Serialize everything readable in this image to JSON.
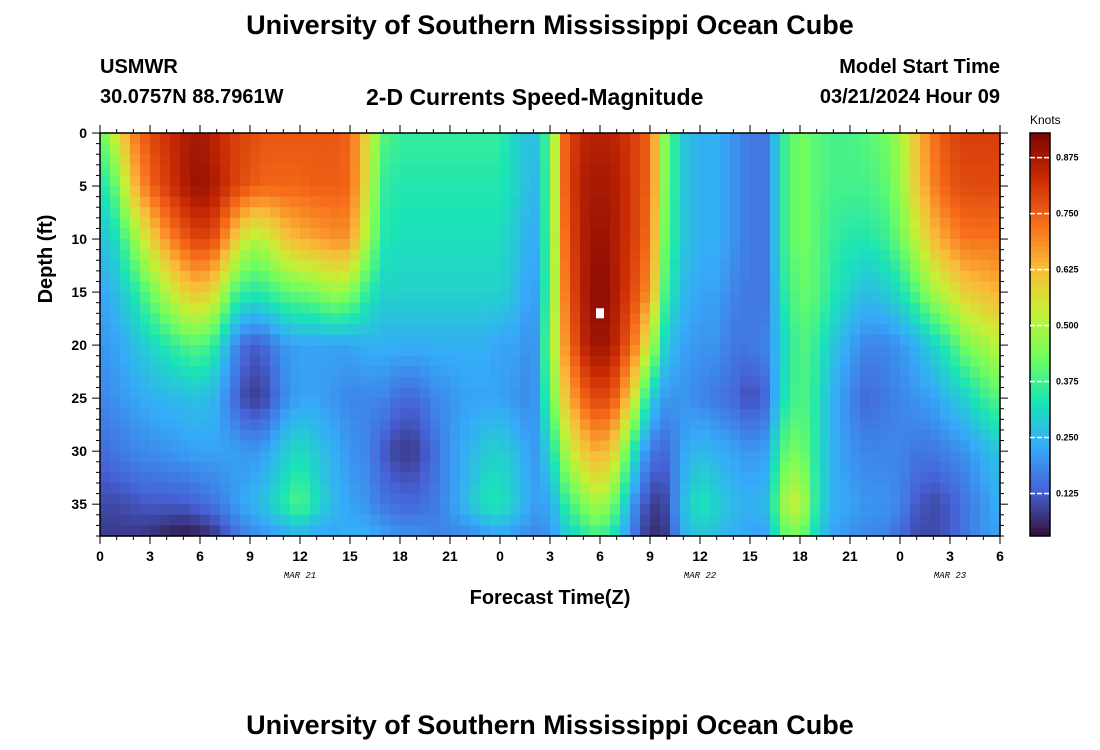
{
  "header": {
    "title": "University of Southern Mississippi Ocean Cube",
    "station": "USMWR",
    "coordinates": "30.0757N  88.7961W",
    "plot_title": "2-D Currents Speed-Magnitude",
    "start_label": "Model Start Time",
    "start_value": "03/21/2024 Hour 09"
  },
  "footer": {
    "title": "University of Southern Mississippi Ocean Cube"
  },
  "chart_data": {
    "type": "heatmap",
    "title": "2-D Currents Speed-Magnitude",
    "xlabel": "Forecast Time(Z)",
    "ylabel": "Depth (ft)",
    "x_ticks": [
      "0",
      "3",
      "6",
      "9",
      "12",
      "15",
      "18",
      "21",
      "0",
      "3",
      "6",
      "9",
      "12",
      "15",
      "18",
      "21",
      "0",
      "3",
      "6"
    ],
    "x_date_labels": [
      {
        "label": "MAR 21",
        "at_hour": 12
      },
      {
        "label": "MAR 22",
        "at_hour": 36
      },
      {
        "label": "MAR 23",
        "at_hour": 51
      }
    ],
    "xlim_hours": [
      0,
      54
    ],
    "y_ticks": [
      0,
      5,
      10,
      15,
      20,
      25,
      30,
      35
    ],
    "ylim": [
      0,
      38
    ],
    "colorbar": {
      "unit": "Knots",
      "ticks": [
        "0.125",
        "0.250",
        "0.375",
        "0.500",
        "0.625",
        "0.750",
        "0.875"
      ],
      "range": [
        0.03,
        0.93
      ],
      "colors": [
        "#30123b",
        "#4662d7",
        "#36aaf9",
        "#1ae4b6",
        "#72fe5e",
        "#c8ef34",
        "#faba39",
        "#f66b19",
        "#ca2a04",
        "#7a0403"
      ]
    },
    "marker": {
      "hour": 30,
      "depth": 17
    },
    "grid_hours": [
      0,
      1,
      2,
      3,
      4,
      5,
      6,
      7,
      8,
      9,
      10,
      11,
      12,
      13,
      14,
      15,
      16,
      17,
      18,
      19,
      20,
      21,
      22,
      23,
      24,
      25,
      26,
      27,
      28,
      29,
      30,
      31,
      32,
      33,
      34,
      35,
      36,
      37,
      38,
      39,
      40,
      41,
      42,
      43,
      44,
      45,
      46,
      47,
      48,
      49,
      50,
      51,
      52,
      53,
      54
    ],
    "grid_depths_ft": [
      0,
      5,
      10,
      15,
      20,
      25,
      30,
      35,
      38
    ],
    "speed_knots": [
      [
        0.4,
        0.32,
        0.26,
        0.22,
        0.2,
        0.18,
        0.14,
        0.1,
        0.08
      ],
      [
        0.55,
        0.42,
        0.32,
        0.26,
        0.22,
        0.2,
        0.16,
        0.1,
        0.08
      ],
      [
        0.7,
        0.62,
        0.45,
        0.33,
        0.26,
        0.22,
        0.18,
        0.11,
        0.08
      ],
      [
        0.78,
        0.74,
        0.58,
        0.42,
        0.3,
        0.24,
        0.19,
        0.12,
        0.07
      ],
      [
        0.82,
        0.8,
        0.68,
        0.5,
        0.34,
        0.25,
        0.2,
        0.12,
        0.05
      ],
      [
        0.86,
        0.86,
        0.75,
        0.58,
        0.38,
        0.26,
        0.21,
        0.12,
        0.04
      ],
      [
        0.88,
        0.9,
        0.8,
        0.62,
        0.4,
        0.27,
        0.22,
        0.14,
        0.05
      ],
      [
        0.84,
        0.86,
        0.76,
        0.55,
        0.34,
        0.24,
        0.22,
        0.16,
        0.08
      ],
      [
        0.8,
        0.8,
        0.62,
        0.4,
        0.2,
        0.15,
        0.22,
        0.2,
        0.14
      ],
      [
        0.78,
        0.76,
        0.5,
        0.34,
        0.12,
        0.08,
        0.2,
        0.24,
        0.18
      ],
      [
        0.76,
        0.74,
        0.52,
        0.36,
        0.14,
        0.1,
        0.22,
        0.28,
        0.2
      ],
      [
        0.76,
        0.74,
        0.6,
        0.4,
        0.2,
        0.18,
        0.28,
        0.34,
        0.22
      ],
      [
        0.76,
        0.74,
        0.64,
        0.42,
        0.22,
        0.22,
        0.32,
        0.4,
        0.24
      ],
      [
        0.76,
        0.75,
        0.66,
        0.44,
        0.22,
        0.22,
        0.28,
        0.32,
        0.22
      ],
      [
        0.76,
        0.75,
        0.68,
        0.48,
        0.22,
        0.2,
        0.24,
        0.26,
        0.22
      ],
      [
        0.74,
        0.74,
        0.68,
        0.46,
        0.22,
        0.18,
        0.2,
        0.22,
        0.24
      ],
      [
        0.58,
        0.56,
        0.5,
        0.36,
        0.24,
        0.18,
        0.18,
        0.2,
        0.24
      ],
      [
        0.4,
        0.36,
        0.34,
        0.3,
        0.24,
        0.18,
        0.12,
        0.16,
        0.22
      ],
      [
        0.36,
        0.34,
        0.32,
        0.3,
        0.24,
        0.14,
        0.08,
        0.14,
        0.2
      ],
      [
        0.36,
        0.34,
        0.32,
        0.3,
        0.24,
        0.14,
        0.09,
        0.14,
        0.2
      ],
      [
        0.36,
        0.34,
        0.32,
        0.3,
        0.24,
        0.18,
        0.14,
        0.16,
        0.18
      ],
      [
        0.36,
        0.34,
        0.32,
        0.3,
        0.24,
        0.2,
        0.2,
        0.2,
        0.18
      ],
      [
        0.36,
        0.34,
        0.32,
        0.3,
        0.24,
        0.22,
        0.24,
        0.26,
        0.18
      ],
      [
        0.36,
        0.34,
        0.32,
        0.3,
        0.24,
        0.22,
        0.28,
        0.32,
        0.2
      ],
      [
        0.36,
        0.34,
        0.32,
        0.3,
        0.22,
        0.22,
        0.3,
        0.34,
        0.22
      ],
      [
        0.3,
        0.3,
        0.28,
        0.26,
        0.22,
        0.2,
        0.26,
        0.28,
        0.2
      ],
      [
        0.26,
        0.24,
        0.22,
        0.2,
        0.18,
        0.18,
        0.2,
        0.22,
        0.18
      ],
      [
        0.4,
        0.4,
        0.4,
        0.4,
        0.44,
        0.4,
        0.3,
        0.22,
        0.2
      ],
      [
        0.78,
        0.78,
        0.76,
        0.74,
        0.7,
        0.62,
        0.5,
        0.36,
        0.28
      ],
      [
        0.84,
        0.86,
        0.86,
        0.86,
        0.84,
        0.74,
        0.6,
        0.44,
        0.34
      ],
      [
        0.86,
        0.88,
        0.9,
        0.92,
        0.9,
        0.8,
        0.66,
        0.5,
        0.38
      ],
      [
        0.84,
        0.86,
        0.86,
        0.86,
        0.84,
        0.74,
        0.56,
        0.4,
        0.3
      ],
      [
        0.8,
        0.8,
        0.8,
        0.78,
        0.72,
        0.56,
        0.34,
        0.2,
        0.16
      ],
      [
        0.74,
        0.74,
        0.72,
        0.68,
        0.52,
        0.3,
        0.16,
        0.08,
        0.06
      ],
      [
        0.42,
        0.42,
        0.4,
        0.36,
        0.28,
        0.2,
        0.14,
        0.1,
        0.08
      ],
      [
        0.28,
        0.28,
        0.28,
        0.26,
        0.22,
        0.2,
        0.22,
        0.26,
        0.24
      ],
      [
        0.24,
        0.24,
        0.24,
        0.22,
        0.2,
        0.18,
        0.26,
        0.34,
        0.28
      ],
      [
        0.24,
        0.24,
        0.24,
        0.22,
        0.2,
        0.16,
        0.24,
        0.3,
        0.26
      ],
      [
        0.2,
        0.2,
        0.2,
        0.18,
        0.16,
        0.14,
        0.22,
        0.26,
        0.24
      ],
      [
        0.16,
        0.16,
        0.16,
        0.16,
        0.16,
        0.1,
        0.2,
        0.24,
        0.22
      ],
      [
        0.16,
        0.16,
        0.16,
        0.16,
        0.18,
        0.14,
        0.22,
        0.26,
        0.22
      ],
      [
        0.36,
        0.36,
        0.36,
        0.34,
        0.3,
        0.32,
        0.4,
        0.48,
        0.4
      ],
      [
        0.44,
        0.44,
        0.44,
        0.42,
        0.4,
        0.4,
        0.44,
        0.54,
        0.44
      ],
      [
        0.4,
        0.4,
        0.4,
        0.4,
        0.36,
        0.34,
        0.34,
        0.34,
        0.3
      ],
      [
        0.38,
        0.38,
        0.36,
        0.34,
        0.28,
        0.24,
        0.24,
        0.24,
        0.22
      ],
      [
        0.38,
        0.38,
        0.34,
        0.3,
        0.22,
        0.18,
        0.2,
        0.22,
        0.2
      ],
      [
        0.4,
        0.38,
        0.34,
        0.26,
        0.18,
        0.14,
        0.18,
        0.2,
        0.18
      ],
      [
        0.42,
        0.4,
        0.36,
        0.28,
        0.18,
        0.16,
        0.18,
        0.2,
        0.18
      ],
      [
        0.48,
        0.46,
        0.42,
        0.32,
        0.2,
        0.18,
        0.18,
        0.18,
        0.14
      ],
      [
        0.62,
        0.6,
        0.52,
        0.4,
        0.24,
        0.2,
        0.16,
        0.12,
        0.1
      ],
      [
        0.72,
        0.7,
        0.62,
        0.48,
        0.3,
        0.22,
        0.16,
        0.1,
        0.1
      ],
      [
        0.78,
        0.76,
        0.68,
        0.54,
        0.36,
        0.26,
        0.18,
        0.12,
        0.12
      ],
      [
        0.8,
        0.78,
        0.72,
        0.6,
        0.44,
        0.3,
        0.2,
        0.16,
        0.16
      ],
      [
        0.8,
        0.78,
        0.72,
        0.62,
        0.48,
        0.36,
        0.24,
        0.2,
        0.2
      ],
      [
        0.8,
        0.78,
        0.72,
        0.64,
        0.52,
        0.4,
        0.28,
        0.24,
        0.22
      ]
    ]
  }
}
